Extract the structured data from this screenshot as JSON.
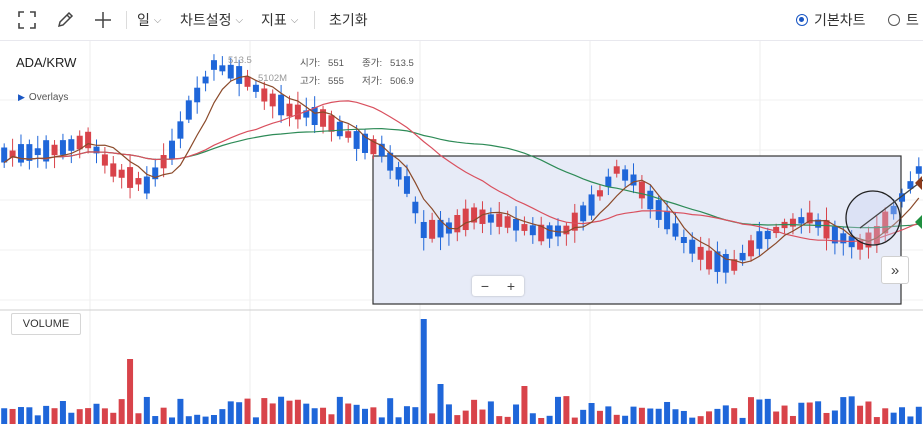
{
  "toolbar": {
    "fullscreen_icon": "fullscreen-icon",
    "draw_icon": "pencil-icon",
    "crosshair_icon": "plus-icon",
    "period_label": "일",
    "chart_settings_label": "차트설정",
    "indicator_label": "지표",
    "reset_label": "초기화",
    "radio_basic_label": "기본차트",
    "radio_second_label": "트"
  },
  "chart": {
    "symbol": "ADA/KRW",
    "overlays_label": "Overlays",
    "info": {
      "l1": "시가:",
      "v1": "551",
      "l2": "종가:",
      "v2": "513.5",
      "l3": "고가:",
      "v3": "555",
      "l4": "저가:",
      "v4": "506.9",
      "ghost1": "513.5",
      "ghost2": "5102M"
    },
    "volume_label": "VOLUME",
    "zoom_minus": "−",
    "zoom_plus": "+",
    "scroll_right": "»"
  },
  "colors": {
    "up": "#d8434a",
    "down": "#1f66d9",
    "ma_short": "#8b4a2a",
    "ma_mid": "#d9505e",
    "ma_long": "#2e8b57",
    "selection_fill": "#e7ebf7",
    "selection_stroke": "#333333",
    "accent": "#1a57c4"
  },
  "chart_data": {
    "type": "candlestick",
    "series_count": 70,
    "candles": [
      [
        0,
        150,
        148,
        162,
        false
      ],
      [
        1,
        148,
        152,
        160,
        true
      ],
      [
        2,
        150,
        147,
        158,
        false
      ],
      [
        3,
        152,
        140,
        160,
        true
      ],
      [
        4,
        141,
        148,
        156,
        false
      ],
      [
        5,
        148,
        140,
        152,
        true
      ],
      [
        6,
        142,
        145,
        150,
        false
      ],
      [
        7,
        145,
        150,
        155,
        false
      ],
      [
        8,
        150,
        146,
        156,
        true
      ],
      [
        9,
        146,
        130,
        150,
        true
      ],
      [
        10,
        130,
        125,
        148,
        true
      ],
      [
        11,
        125,
        130,
        134,
        false
      ],
      [
        12,
        130,
        175,
        190,
        false
      ],
      [
        13,
        175,
        195,
        200,
        false
      ],
      [
        14,
        195,
        175,
        205,
        true
      ],
      [
        15,
        175,
        165,
        180,
        true
      ],
      [
        16,
        165,
        140,
        170,
        true
      ],
      [
        17,
        140,
        130,
        145,
        true
      ],
      [
        18,
        130,
        110,
        135,
        true
      ],
      [
        19,
        110,
        70,
        115,
        true
      ],
      [
        20,
        70,
        65,
        75,
        false
      ],
      [
        21,
        68,
        55,
        72,
        true
      ],
      [
        22,
        55,
        60,
        65,
        false
      ],
      [
        23,
        60,
        75,
        82,
        false
      ],
      [
        24,
        75,
        70,
        80,
        true
      ],
      [
        25,
        70,
        95,
        100,
        false
      ],
      [
        26,
        95,
        100,
        105,
        false
      ],
      [
        27,
        100,
        110,
        114,
        false
      ],
      [
        28,
        110,
        122,
        128,
        false
      ],
      [
        29,
        120,
        125,
        130,
        false
      ],
      [
        30,
        125,
        128,
        134,
        false
      ],
      [
        31,
        128,
        115,
        132,
        true
      ],
      [
        32,
        115,
        125,
        130,
        false
      ],
      [
        33,
        125,
        120,
        130,
        true
      ],
      [
        34,
        120,
        130,
        135,
        false
      ],
      [
        35,
        130,
        170,
        182,
        false
      ],
      [
        36,
        170,
        180,
        190,
        false
      ],
      [
        37,
        180,
        220,
        260,
        false
      ],
      [
        38,
        220,
        240,
        245,
        false
      ],
      [
        39,
        240,
        245,
        250,
        false
      ],
      [
        40,
        245,
        230,
        252,
        true
      ],
      [
        41,
        230,
        220,
        235,
        true
      ],
      [
        42,
        220,
        215,
        225,
        true
      ],
      [
        43,
        215,
        230,
        236,
        false
      ],
      [
        44,
        230,
        225,
        235,
        true
      ],
      [
        45,
        225,
        240,
        245,
        false
      ],
      [
        46,
        240,
        232,
        244,
        true
      ],
      [
        47,
        232,
        225,
        236,
        true
      ],
      [
        48,
        225,
        210,
        228,
        true
      ],
      [
        49,
        210,
        205,
        214,
        true
      ],
      [
        50,
        205,
        190,
        210,
        true
      ],
      [
        51,
        190,
        180,
        194,
        true
      ],
      [
        52,
        180,
        165,
        185,
        true
      ],
      [
        53,
        165,
        170,
        175,
        false
      ],
      [
        54,
        170,
        200,
        205,
        false
      ],
      [
        55,
        200,
        215,
        220,
        false
      ],
      [
        56,
        215,
        230,
        235,
        false
      ],
      [
        57,
        230,
        245,
        250,
        false
      ],
      [
        58,
        245,
        260,
        265,
        false
      ],
      [
        59,
        260,
        250,
        264,
        true
      ],
      [
        60,
        250,
        235,
        256,
        true
      ],
      [
        61,
        235,
        228,
        240,
        true
      ],
      [
        62,
        228,
        220,
        232,
        true
      ],
      [
        63,
        220,
        215,
        225,
        true
      ],
      [
        64,
        215,
        208,
        220,
        true
      ],
      [
        65,
        208,
        200,
        212,
        true
      ],
      [
        66,
        200,
        205,
        210,
        false
      ],
      [
        67,
        205,
        190,
        210,
        true
      ],
      [
        68,
        190,
        180,
        196,
        true
      ],
      [
        69,
        180,
        170,
        185,
        true
      ]
    ]
  }
}
